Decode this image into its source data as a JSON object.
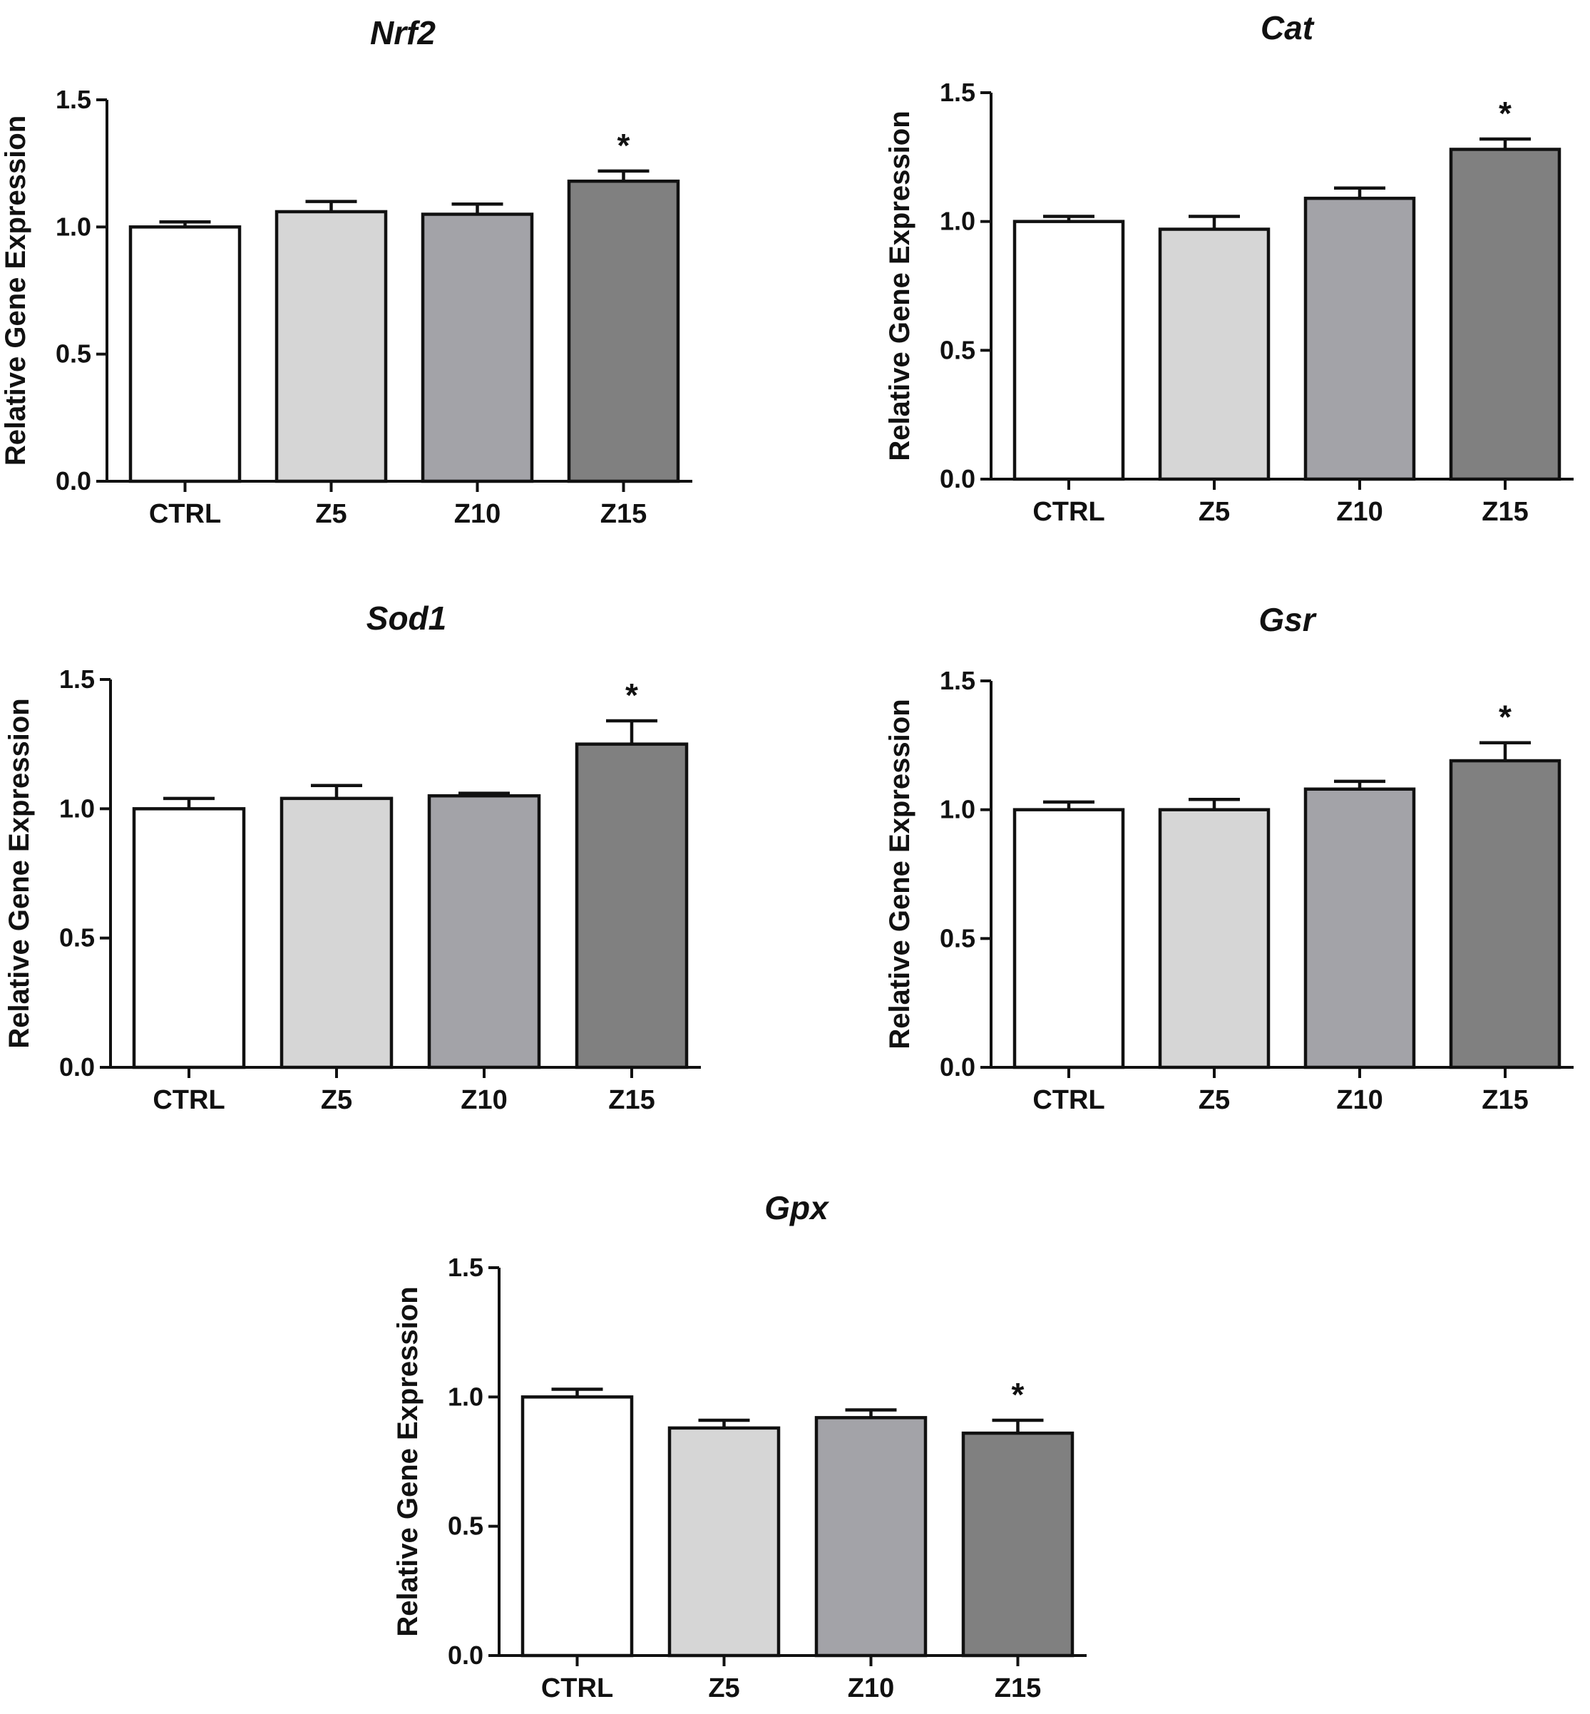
{
  "figure": {
    "ylabel": "Relative Gene Expression",
    "colors": {
      "CTRL": "#ffffff",
      "Z5": "#d6d6d6",
      "Z10": "#a3a3a8",
      "Z15": "#808080",
      "stroke": "#111111"
    }
  },
  "chart_data": [
    {
      "type": "bar",
      "title": "Nrf2",
      "xlabel": "",
      "ylabel": "Relative Gene Expression",
      "categories": [
        "CTRL",
        "Z5",
        "Z10",
        "Z15"
      ],
      "values": [
        1.0,
        1.06,
        1.05,
        1.18
      ],
      "errors": [
        0.02,
        0.04,
        0.04,
        0.04
      ],
      "significance": [
        "",
        "",
        "",
        "*"
      ],
      "ylim": [
        0,
        1.5
      ],
      "yticks": [
        "0.0",
        "0.5",
        "1.0",
        "1.5"
      ],
      "grid": false
    },
    {
      "type": "bar",
      "title": "Cat",
      "xlabel": "",
      "ylabel": "Relative Gene Expression",
      "categories": [
        "CTRL",
        "Z5",
        "Z10",
        "Z15"
      ],
      "values": [
        1.0,
        0.97,
        1.09,
        1.28
      ],
      "errors": [
        0.02,
        0.05,
        0.04,
        0.04
      ],
      "significance": [
        "",
        "",
        "",
        "*"
      ],
      "ylim": [
        0,
        1.5
      ],
      "yticks": [
        "0.0",
        "0.5",
        "1.0",
        "1.5"
      ],
      "grid": false
    },
    {
      "type": "bar",
      "title": "Sod1",
      "xlabel": "",
      "ylabel": "Relative Gene Expression",
      "categories": [
        "CTRL",
        "Z5",
        "Z10",
        "Z15"
      ],
      "values": [
        1.0,
        1.04,
        1.05,
        1.25
      ],
      "errors": [
        0.04,
        0.05,
        0.01,
        0.09
      ],
      "significance": [
        "",
        "",
        "",
        "*"
      ],
      "ylim": [
        0,
        1.5
      ],
      "yticks": [
        "0.0",
        "0.5",
        "1.0",
        "1.5"
      ],
      "grid": false
    },
    {
      "type": "bar",
      "title": "Gsr",
      "xlabel": "",
      "ylabel": "Relative Gene Expression",
      "categories": [
        "CTRL",
        "Z5",
        "Z10",
        "Z15"
      ],
      "values": [
        1.0,
        1.0,
        1.08,
        1.19
      ],
      "errors": [
        0.03,
        0.04,
        0.03,
        0.07
      ],
      "significance": [
        "",
        "",
        "",
        "*"
      ],
      "ylim": [
        0,
        1.5
      ],
      "yticks": [
        "0.0",
        "0.5",
        "1.0",
        "1.5"
      ],
      "grid": false
    },
    {
      "type": "bar",
      "title": "Gpx",
      "xlabel": "",
      "ylabel": "Relative Gene Expression",
      "categories": [
        "CTRL",
        "Z5",
        "Z10",
        "Z15"
      ],
      "values": [
        1.0,
        0.88,
        0.92,
        0.86
      ],
      "errors": [
        0.03,
        0.03,
        0.03,
        0.05
      ],
      "significance": [
        "",
        "",
        "",
        "*"
      ],
      "ylim": [
        0,
        1.5
      ],
      "yticks": [
        "0.0",
        "0.5",
        "1.0",
        "1.5"
      ],
      "grid": false
    }
  ]
}
